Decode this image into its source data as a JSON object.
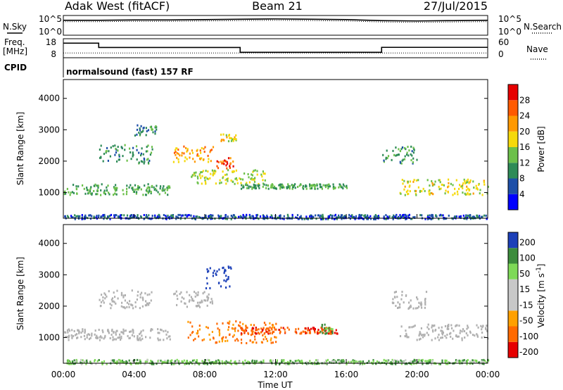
{
  "header": {
    "site": "Adak West (fitACF)",
    "beam": "Beam 21",
    "date": "27/Jul/2015"
  },
  "top_panels": {
    "nsky_label": "N.Sky",
    "nsearch_label": "N.Search",
    "noise_ticks": [
      "10^5",
      "10^0"
    ],
    "freq_label": "Freq.",
    "freq_unit": "[MHz]",
    "freq_ticks": [
      "18",
      "8"
    ],
    "nave_label": "Nave",
    "nave_ticks": [
      "60",
      "0"
    ],
    "cpid_label": "CPID",
    "cpid_text": "normalsound (fast) 157 RF"
  },
  "colors": {
    "power_scale": [
      "#0000ff",
      "#1d4fa8",
      "#2e8b57",
      "#6cc04a",
      "#f5d90a",
      "#ff9900",
      "#ff5a00",
      "#e60000"
    ],
    "velocity_scale": [
      "#e60000",
      "#ff6a00",
      "#ffa000",
      "#c8c8c8",
      "#c8c8c8",
      "#7ed957",
      "#3c8c3c",
      "#1c40b8"
    ],
    "ground_scatter": "#b0b0b0"
  },
  "chart_data": [
    {
      "type": "line",
      "name": "noise",
      "x": [
        0,
        2,
        4,
        6,
        8,
        10,
        12,
        14,
        16,
        18,
        20,
        22,
        24
      ],
      "series": [
        {
          "name": "N.Sky",
          "values": [
            4.0,
            4.0,
            4.1,
            4.1,
            4.2,
            4.3,
            4.4,
            4.3,
            4.2,
            3.9,
            3.8,
            3.9,
            4.0
          ]
        },
        {
          "name": "N.Search",
          "values": [
            3.6,
            3.6,
            3.7,
            3.7,
            3.8,
            3.9,
            4.0,
            3.9,
            3.8,
            3.5,
            3.4,
            3.5,
            3.6
          ]
        }
      ],
      "ylim": [
        0,
        5
      ]
    },
    {
      "type": "line",
      "name": "frequency_nave",
      "series": [
        {
          "name": "Freq.",
          "x": [
            0,
            2,
            2,
            10,
            10,
            18,
            18,
            24
          ],
          "values": [
            16.5,
            16.5,
            13.7,
            13.7,
            10.6,
            10.6,
            13.8,
            13.8
          ]
        },
        {
          "name": "Nave",
          "x": [
            0,
            24
          ],
          "values": [
            13,
            13
          ]
        }
      ],
      "ylim_freq": [
        8,
        18
      ],
      "ylim_nave": [
        0,
        60
      ]
    },
    {
      "type": "heatmap",
      "name": "power",
      "xlabel": "Time UT",
      "ylabel": "Slant Range [km]",
      "xlim": [
        0,
        24
      ],
      "ylim": [
        180,
        4600
      ],
      "x_ticks": [
        "00:00",
        "04:00",
        "08:00",
        "12:00",
        "16:00",
        "20:00",
        "00:00"
      ],
      "y_ticks": [
        1000,
        2000,
        3000,
        4000
      ],
      "colorbar_label": "Power [dB]",
      "colorbar_ticks": [
        4,
        8,
        12,
        16,
        20,
        24,
        28
      ],
      "regions": [
        {
          "t0": 0.0,
          "t1": 6.0,
          "r0": 950,
          "r1": 1300,
          "v": 12
        },
        {
          "t0": 2.0,
          "t1": 5.0,
          "r0": 1950,
          "r1": 2550,
          "v": 10
        },
        {
          "t0": 4.0,
          "t1": 5.3,
          "r0": 2850,
          "r1": 3200,
          "v": 9
        },
        {
          "t0": 6.2,
          "t1": 8.5,
          "r0": 2000,
          "r1": 2500,
          "v": 22
        },
        {
          "t0": 8.6,
          "t1": 9.6,
          "r0": 1800,
          "r1": 2150,
          "v": 27
        },
        {
          "t0": 8.8,
          "t1": 9.8,
          "r0": 2600,
          "r1": 2900,
          "v": 18
        },
        {
          "t0": 7.2,
          "t1": 11.5,
          "r0": 1300,
          "r1": 1750,
          "v": 16
        },
        {
          "t0": 10.0,
          "t1": 16.0,
          "r0": 1150,
          "r1": 1300,
          "v": 12
        },
        {
          "t0": 18.0,
          "t1": 20.0,
          "r0": 1950,
          "r1": 2500,
          "v": 11
        },
        {
          "t0": 19.0,
          "t1": 24.0,
          "r0": 950,
          "r1": 1450,
          "v": 17
        },
        {
          "t0": 0.0,
          "t1": 24.0,
          "r0": 180,
          "r1": 320,
          "v": 6
        }
      ]
    },
    {
      "type": "heatmap",
      "name": "velocity",
      "xlabel": "Time UT",
      "ylabel": "Slant Range [km]",
      "xlim": [
        0,
        24
      ],
      "ylim": [
        180,
        4600
      ],
      "x_ticks": [
        "00:00",
        "04:00",
        "08:00",
        "12:00",
        "16:00",
        "20:00",
        "00:00"
      ],
      "y_ticks": [
        1000,
        2000,
        3000,
        4000
      ],
      "colorbar_label": "Velocity [m s^-1]",
      "colorbar_ticks": [
        200,
        100,
        50,
        15,
        -15,
        -50,
        -100,
        -200
      ],
      "regions": [
        {
          "t0": 0.0,
          "t1": 6.0,
          "r0": 950,
          "r1": 1300,
          "v": 0,
          "gs": true
        },
        {
          "t0": 2.0,
          "t1": 5.0,
          "r0": 1950,
          "r1": 2550,
          "v": 0,
          "gs": true
        },
        {
          "t0": 6.2,
          "t1": 8.5,
          "r0": 2000,
          "r1": 2500,
          "v": 0,
          "gs": true
        },
        {
          "t0": 8.0,
          "t1": 9.5,
          "r0": 2600,
          "r1": 3300,
          "v": 180
        },
        {
          "t0": 7.0,
          "t1": 12.0,
          "r0": 850,
          "r1": 1550,
          "v": -60
        },
        {
          "t0": 10.0,
          "t1": 15.5,
          "r0": 1150,
          "r1": 1350,
          "v": -90
        },
        {
          "t0": 14.5,
          "t1": 15.2,
          "r0": 1150,
          "r1": 1450,
          "v": 60
        },
        {
          "t0": 18.5,
          "t1": 20.5,
          "r0": 1950,
          "r1": 2500,
          "v": 0,
          "gs": true
        },
        {
          "t0": 19.0,
          "t1": 24.0,
          "r0": 950,
          "r1": 1450,
          "v": 0,
          "gs": true
        },
        {
          "t0": 0.0,
          "t1": 24.0,
          "r0": 180,
          "r1": 320,
          "v": 40
        }
      ]
    }
  ]
}
